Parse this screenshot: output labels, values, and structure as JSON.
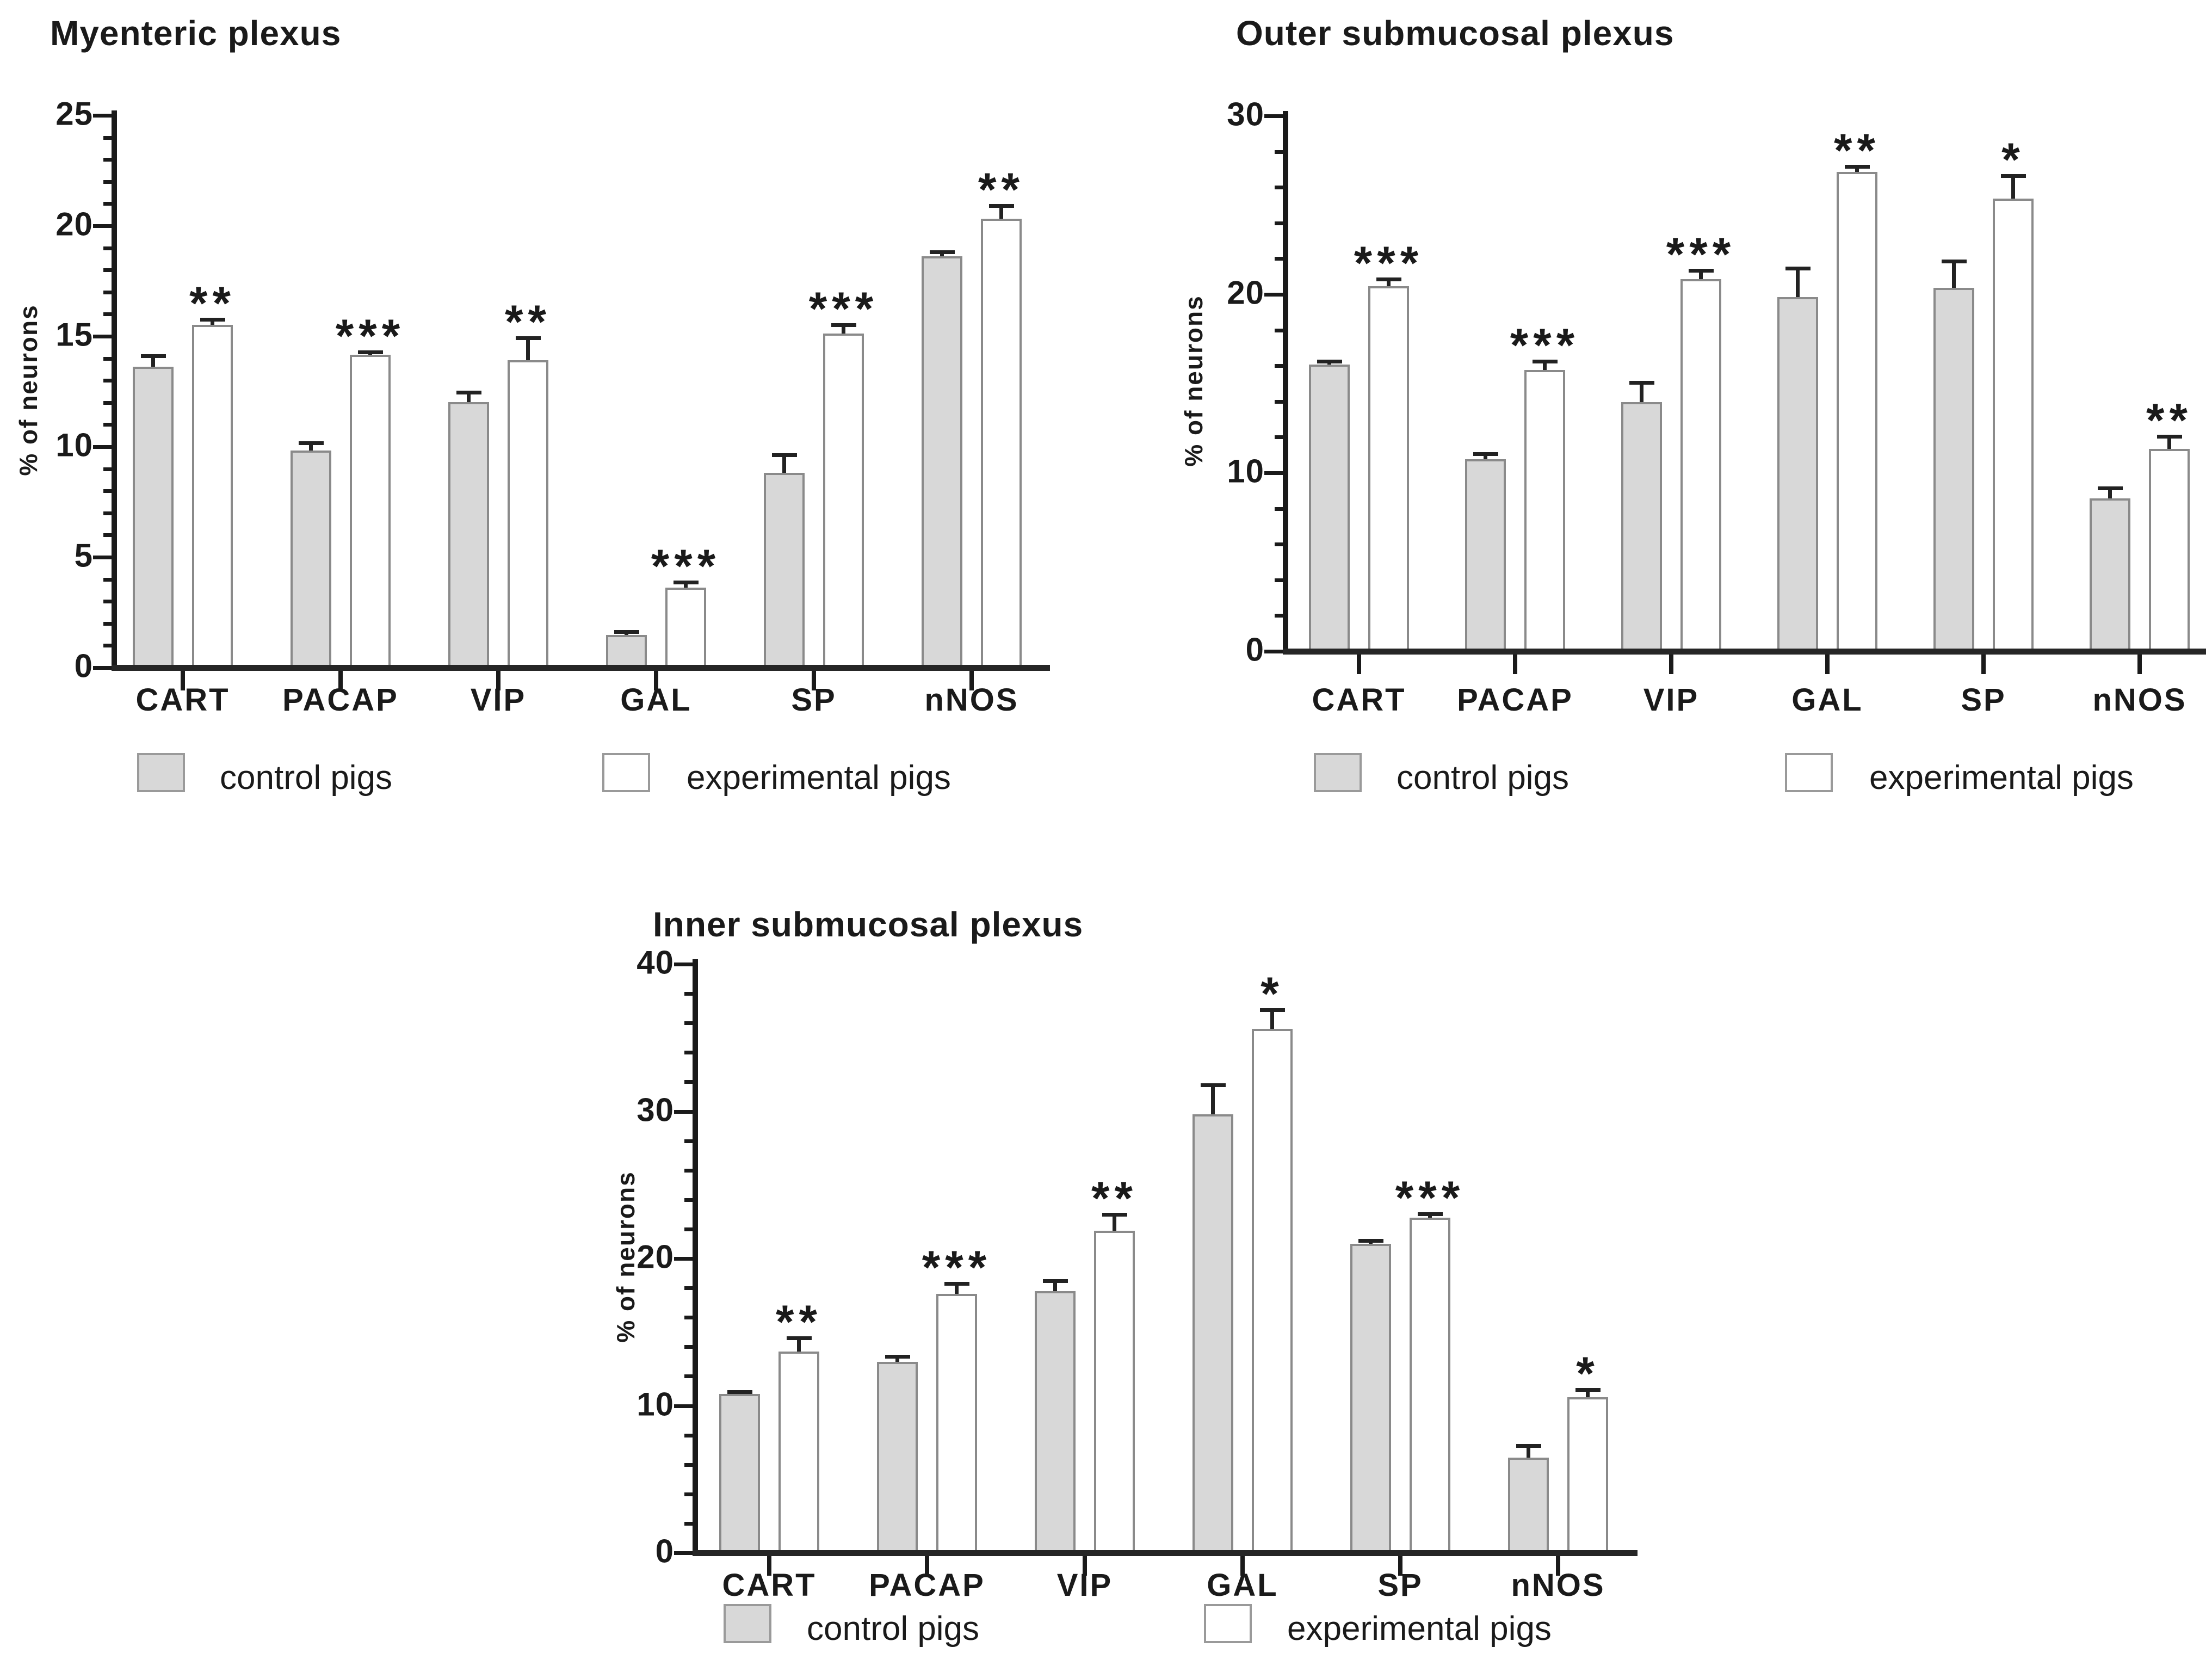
{
  "colors": {
    "axis": "#1a1a1a",
    "text": "#1a1a1a",
    "bar_border": "#8a8a8a",
    "error_bar": "#222222",
    "control_fill": "#d8d8d8",
    "experimental_fill": "#ffffff",
    "background": "#ffffff"
  },
  "chart_data": [
    {
      "type": "bar",
      "title": "Myenteric plexus",
      "xlabel": "",
      "ylabel": "% of neurons",
      "ylim": [
        0,
        25
      ],
      "ytick_major": 5,
      "ytick_minor": 1,
      "grid": false,
      "legend_position": "bottom",
      "categories": [
        "CART",
        "PACAP",
        "VIP",
        "GAL",
        "SP",
        "nNOS"
      ],
      "series": [
        {
          "name": "control pigs",
          "fill": "#d8d8d8",
          "values": [
            13.5,
            9.7,
            11.9,
            1.35,
            8.7,
            18.5
          ],
          "errors": [
            0.5,
            0.35,
            0.45,
            0.15,
            0.8,
            0.2
          ]
        },
        {
          "name": "experimental pigs",
          "fill": "#ffffff",
          "values": [
            15.4,
            14.05,
            13.8,
            3.5,
            15.0,
            20.2
          ],
          "errors": [
            0.25,
            0.12,
            1.0,
            0.25,
            0.4,
            0.6
          ]
        }
      ],
      "significance": [
        "**",
        "***",
        "**",
        "***",
        "***",
        "**"
      ]
    },
    {
      "type": "bar",
      "title": "Outer submucosal plexus",
      "xlabel": "",
      "ylabel": "% of neurons",
      "ylim": [
        0,
        30
      ],
      "ytick_major": 10,
      "ytick_minor": 2,
      "grid": false,
      "legend_position": "bottom",
      "categories": [
        "CART",
        "PACAP",
        "VIP",
        "GAL",
        "SP",
        "nNOS"
      ],
      "series": [
        {
          "name": "control pigs",
          "fill": "#d8d8d8",
          "values": [
            15.9,
            10.6,
            13.8,
            19.7,
            20.2,
            8.4
          ],
          "errors": [
            0.2,
            0.3,
            1.1,
            1.6,
            1.5,
            0.6
          ]
        },
        {
          "name": "experimental pigs",
          "fill": "#ffffff",
          "values": [
            20.3,
            15.6,
            20.7,
            26.7,
            25.2,
            11.2
          ],
          "errors": [
            0.4,
            0.5,
            0.5,
            0.3,
            1.3,
            0.7
          ]
        }
      ],
      "significance": [
        "***",
        "***",
        "***",
        "**",
        "*",
        "**"
      ]
    },
    {
      "type": "bar",
      "title": "Inner submucosal plexus",
      "xlabel": "",
      "ylabel": "% of neurons",
      "ylim": [
        0,
        40
      ],
      "ytick_major": 10,
      "ytick_minor": 2,
      "grid": false,
      "legend_position": "bottom",
      "categories": [
        "CART",
        "PACAP",
        "VIP",
        "GAL",
        "SP",
        "nNOS"
      ],
      "series": [
        {
          "name": "control pigs",
          "fill": "#d8d8d8",
          "values": [
            10.6,
            12.8,
            17.6,
            29.6,
            20.8,
            6.3
          ],
          "errors": [
            0.15,
            0.35,
            0.7,
            2.0,
            0.25,
            0.8
          ]
        },
        {
          "name": "experimental pigs",
          "fill": "#ffffff",
          "values": [
            13.5,
            17.4,
            21.7,
            35.4,
            22.6,
            10.4
          ],
          "errors": [
            0.9,
            0.7,
            1.1,
            1.3,
            0.25,
            0.5
          ]
        }
      ],
      "significance": [
        "**",
        "***",
        "**",
        "*",
        "***",
        "*"
      ]
    }
  ]
}
